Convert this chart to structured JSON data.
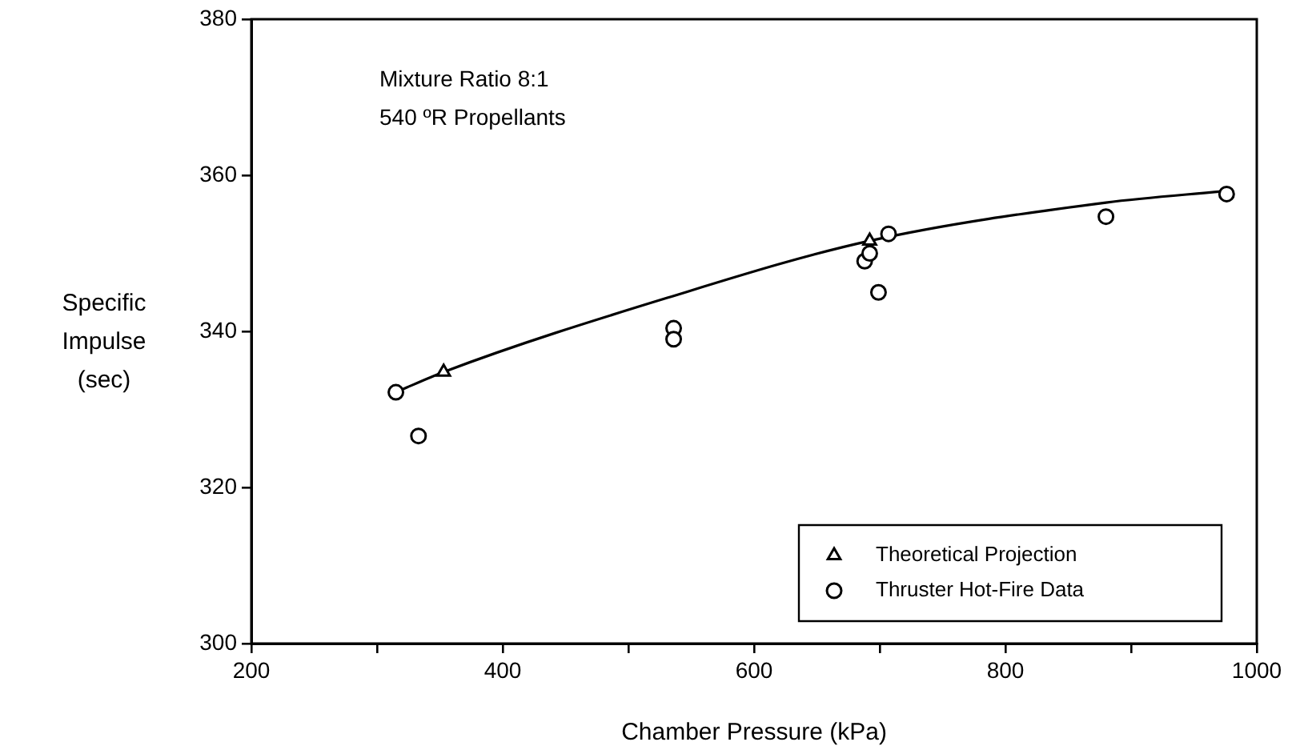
{
  "chart_data": {
    "type": "scatter",
    "xlabel": "Chamber Pressure (kPa)",
    "ylabel": "Specific Impulse (sec)",
    "annotations": [
      "Mixture Ratio 8:1",
      "540 ºR Propellants"
    ],
    "xlim": [
      200,
      1000
    ],
    "ylim": [
      300,
      380
    ],
    "xticks": [
      200,
      {
        "value": 300,
        "label": null
      },
      400,
      {
        "value": 500,
        "label": null
      },
      600,
      {
        "value": 700,
        "label": null
      },
      800,
      {
        "value": 900,
        "label": null
      },
      1000
    ],
    "yticks": [
      300,
      320,
      340,
      360,
      380
    ],
    "grid": false,
    "legend": "bottom right",
    "series": [
      {
        "type": "line",
        "color": "#000000",
        "marker": "none",
        "line_style": "solid",
        "x": [
          315,
          353,
          531,
          692,
          880,
          976
        ],
        "values": [
          332.2,
          334.8,
          344.3,
          351.6,
          356.5,
          358
        ]
      },
      {
        "type": "scatter",
        "name": "Theoretical Projection",
        "color": "#000000",
        "marker": "triangle",
        "x": [
          353,
          692
        ],
        "values": [
          334.8,
          351.6
        ]
      },
      {
        "type": "scatter",
        "name": "Thruster Hot-Fire Data",
        "color": "#000000",
        "marker": "circle",
        "x": [
          315,
          333,
          536,
          536,
          688,
          692,
          699,
          707,
          880,
          976
        ],
        "values": [
          332.2,
          326.6,
          340.4,
          339,
          349,
          350,
          345,
          352.5,
          354.7,
          357.6
        ]
      }
    ]
  }
}
